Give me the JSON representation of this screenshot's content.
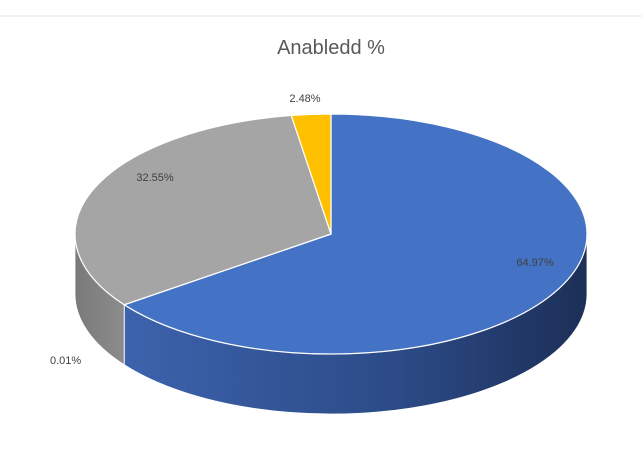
{
  "chart_data": {
    "type": "pie",
    "title": "Anabledd %",
    "slices": [
      {
        "label": "64.97%",
        "value": 64.97,
        "color": "#4472C4"
      },
      {
        "label": "0.01%",
        "value": 0.01,
        "color": "#ED7D31"
      },
      {
        "label": "32.55%",
        "value": 32.55,
        "color": "#A5A5A5"
      },
      {
        "label": "2.48%",
        "value": 2.48,
        "color": "#FFC000"
      }
    ],
    "legend": "none",
    "style": "3d"
  }
}
